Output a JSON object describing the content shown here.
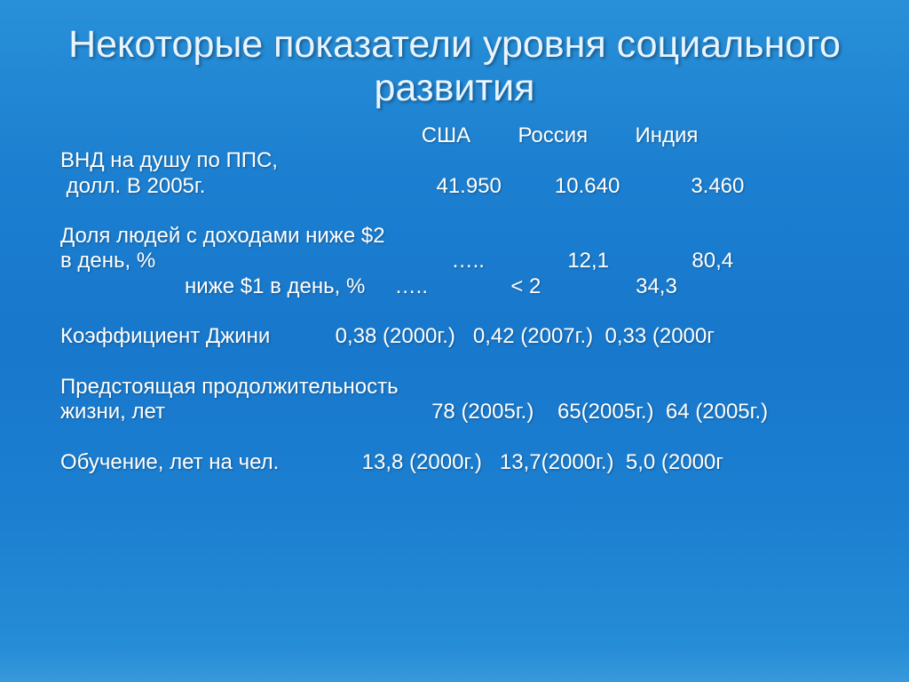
{
  "slide": {
    "background_gradient": [
      "#2890d8",
      "#1c7fd0",
      "#1878cc",
      "#1c7fd0",
      "#2890d8"
    ],
    "text_color": "#ffffff",
    "title_color": "#e8f4ff",
    "title_fontsize": 43,
    "body_fontsize": 24,
    "title": "Некоторые показатели уровня социального развития",
    "table": {
      "columns": [
        "США",
        "Россия",
        "Индия"
      ],
      "indent_blank": "                                                             ",
      "rows": [
        {
          "label_line1": "ВНД на душу по ППС,",
          "label_line2": " долл. В 2005г.",
          "values": [
            "41.950",
            "10.640",
            "3.460"
          ]
        },
        {
          "label_line1": "Доля людей с доходами ниже $2",
          "label_line2": "в день, %",
          "values": [
            "…..",
            "12,1",
            "80,4"
          ]
        },
        {
          "label_line1": "                     ниже $1 в день, %",
          "values": [
            "…..",
            "< 2",
            "34,3"
          ]
        },
        {
          "label_line1": "Коэффициент Джини",
          "values": [
            "0,38 (2000г.)",
            "0,42 (2007г.)",
            "0,33 (2000г"
          ]
        },
        {
          "label_line1": "Предстоящая продолжительность",
          "label_line2": "жизни, лет",
          "values": [
            "78 (2005г.)",
            "65(2005г.)",
            "64 (2005г.)"
          ]
        },
        {
          "label_line1": "Обучение, лет на чел.",
          "values": [
            "13,8 (2000г.)",
            "13,7(2000г.)",
            "5,0 (2000г"
          ]
        }
      ]
    }
  }
}
